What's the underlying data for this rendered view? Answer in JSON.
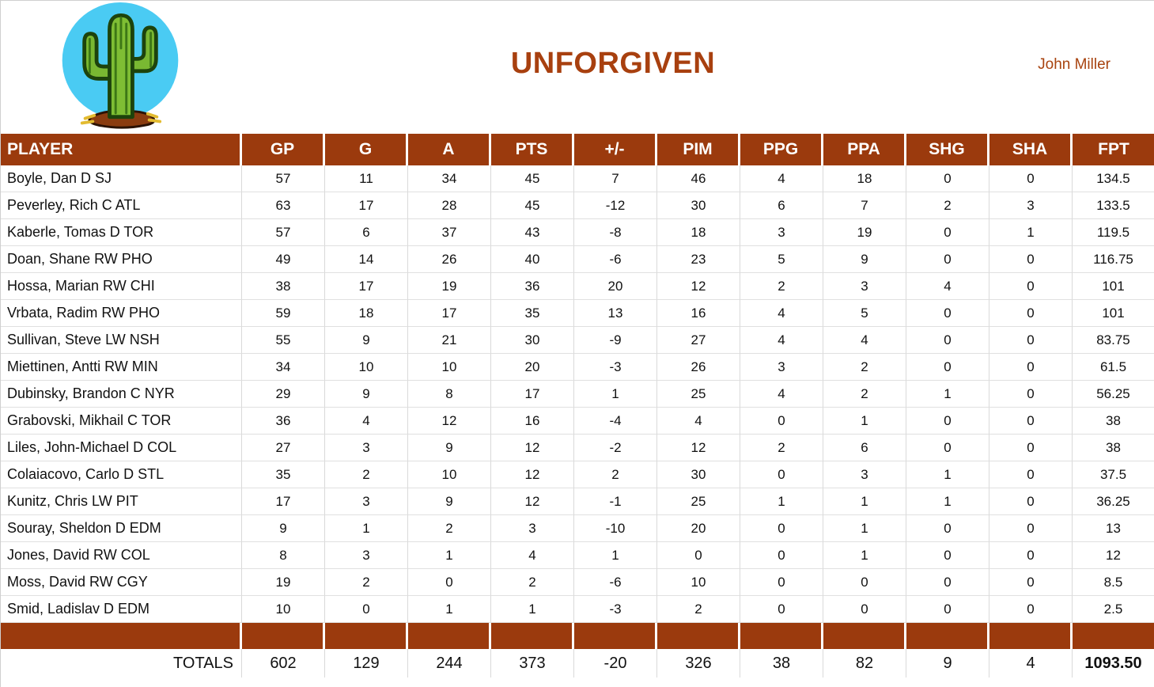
{
  "page": {
    "title": "UNFORGIVEN",
    "owner": "John Miller",
    "logo": "cactus-icon"
  },
  "colors": {
    "accent_brown": "#9b3a0d",
    "title_rust": "#a8400f",
    "logo_blue": "#4acbf3",
    "gridline": "#d9d9d9"
  },
  "table": {
    "columns": [
      "PLAYER",
      "GP",
      "G",
      "A",
      "PTS",
      "+/-",
      "PIM",
      "PPG",
      "PPA",
      "SHG",
      "SHA",
      "FPT"
    ],
    "rows": [
      {
        "player": "Boyle, Dan D SJ",
        "stats": [
          "57",
          "11",
          "34",
          "45",
          "7",
          "46",
          "4",
          "18",
          "0",
          "0",
          "134.5"
        ]
      },
      {
        "player": "Peverley, Rich C ATL",
        "stats": [
          "63",
          "17",
          "28",
          "45",
          "-12",
          "30",
          "6",
          "7",
          "2",
          "3",
          "133.5"
        ]
      },
      {
        "player": "Kaberle, Tomas D TOR",
        "stats": [
          "57",
          "6",
          "37",
          "43",
          "-8",
          "18",
          "3",
          "19",
          "0",
          "1",
          "119.5"
        ]
      },
      {
        "player": "Doan, Shane RW PHO",
        "stats": [
          "49",
          "14",
          "26",
          "40",
          "-6",
          "23",
          "5",
          "9",
          "0",
          "0",
          "116.75"
        ]
      },
      {
        "player": "Hossa, Marian RW CHI",
        "stats": [
          "38",
          "17",
          "19",
          "36",
          "20",
          "12",
          "2",
          "3",
          "4",
          "0",
          "101"
        ]
      },
      {
        "player": "Vrbata, Radim RW PHO",
        "stats": [
          "59",
          "18",
          "17",
          "35",
          "13",
          "16",
          "4",
          "5",
          "0",
          "0",
          "101"
        ]
      },
      {
        "player": "Sullivan, Steve LW NSH",
        "stats": [
          "55",
          "9",
          "21",
          "30",
          "-9",
          "27",
          "4",
          "4",
          "0",
          "0",
          "83.75"
        ]
      },
      {
        "player": "Miettinen, Antti RW MIN",
        "stats": [
          "34",
          "10",
          "10",
          "20",
          "-3",
          "26",
          "3",
          "2",
          "0",
          "0",
          "61.5"
        ]
      },
      {
        "player": "Dubinsky, Brandon C NYR",
        "stats": [
          "29",
          "9",
          "8",
          "17",
          "1",
          "25",
          "4",
          "2",
          "1",
          "0",
          "56.25"
        ]
      },
      {
        "player": "Grabovski, Mikhail C TOR",
        "stats": [
          "36",
          "4",
          "12",
          "16",
          "-4",
          "4",
          "0",
          "1",
          "0",
          "0",
          "38"
        ]
      },
      {
        "player": "Liles, John-Michael D COL",
        "stats": [
          "27",
          "3",
          "9",
          "12",
          "-2",
          "12",
          "2",
          "6",
          "0",
          "0",
          "38"
        ]
      },
      {
        "player": "Colaiacovo, Carlo D STL",
        "stats": [
          "35",
          "2",
          "10",
          "12",
          "2",
          "30",
          "0",
          "3",
          "1",
          "0",
          "37.5"
        ]
      },
      {
        "player": "Kunitz, Chris LW PIT",
        "stats": [
          "17",
          "3",
          "9",
          "12",
          "-1",
          "25",
          "1",
          "1",
          "1",
          "0",
          "36.25"
        ]
      },
      {
        "player": "Souray, Sheldon D EDM",
        "stats": [
          "9",
          "1",
          "2",
          "3",
          "-10",
          "20",
          "0",
          "1",
          "0",
          "0",
          "13"
        ]
      },
      {
        "player": "Jones, David RW COL",
        "stats": [
          "8",
          "3",
          "1",
          "4",
          "1",
          "0",
          "0",
          "1",
          "0",
          "0",
          "12"
        ]
      },
      {
        "player": "Moss, David RW CGY",
        "stats": [
          "19",
          "2",
          "0",
          "2",
          "-6",
          "10",
          "0",
          "0",
          "0",
          "0",
          "8.5"
        ]
      },
      {
        "player": "Smid, Ladislav D EDM",
        "stats": [
          "10",
          "0",
          "1",
          "1",
          "-3",
          "2",
          "0",
          "0",
          "0",
          "0",
          "2.5"
        ]
      }
    ],
    "totals": {
      "label": "TOTALS",
      "values": [
        "602",
        "129",
        "244",
        "373",
        "-20",
        "326",
        "38",
        "82",
        "9",
        "4",
        "1093.50"
      ]
    }
  }
}
